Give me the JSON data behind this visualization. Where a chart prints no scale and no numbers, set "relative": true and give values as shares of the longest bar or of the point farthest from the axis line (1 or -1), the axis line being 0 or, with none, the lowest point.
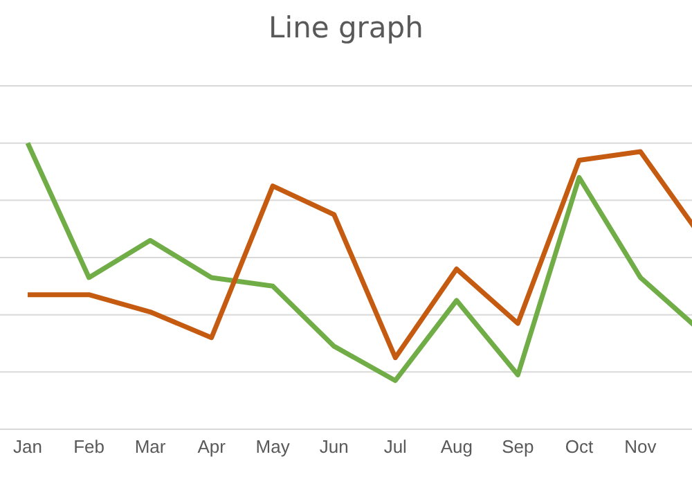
{
  "chart_data": {
    "type": "line",
    "title": "Line graph",
    "relative": true,
    "categories": [
      "Jan",
      "Feb",
      "Mar",
      "Apr",
      "May",
      "Jun",
      "Jul",
      "Aug",
      "Sep",
      "Oct",
      "Nov",
      null
    ],
    "series": [
      {
        "color": "#70ad47",
        "values": [
          1,
          0.53,
          0.66,
          0.53,
          0.5,
          0.29,
          0.17,
          0.45,
          0.19,
          0.88,
          0.53,
          0.34
        ]
      },
      {
        "color": "#c55a11",
        "values": [
          0.47,
          0.47,
          0.41,
          0.32,
          0.85,
          0.75,
          0.25,
          0.56,
          0.37,
          0.94,
          0.97,
          0.67
        ]
      }
    ],
    "grid": "y",
    "legend": false,
    "marker": "none",
    "line_style": "solid"
  }
}
